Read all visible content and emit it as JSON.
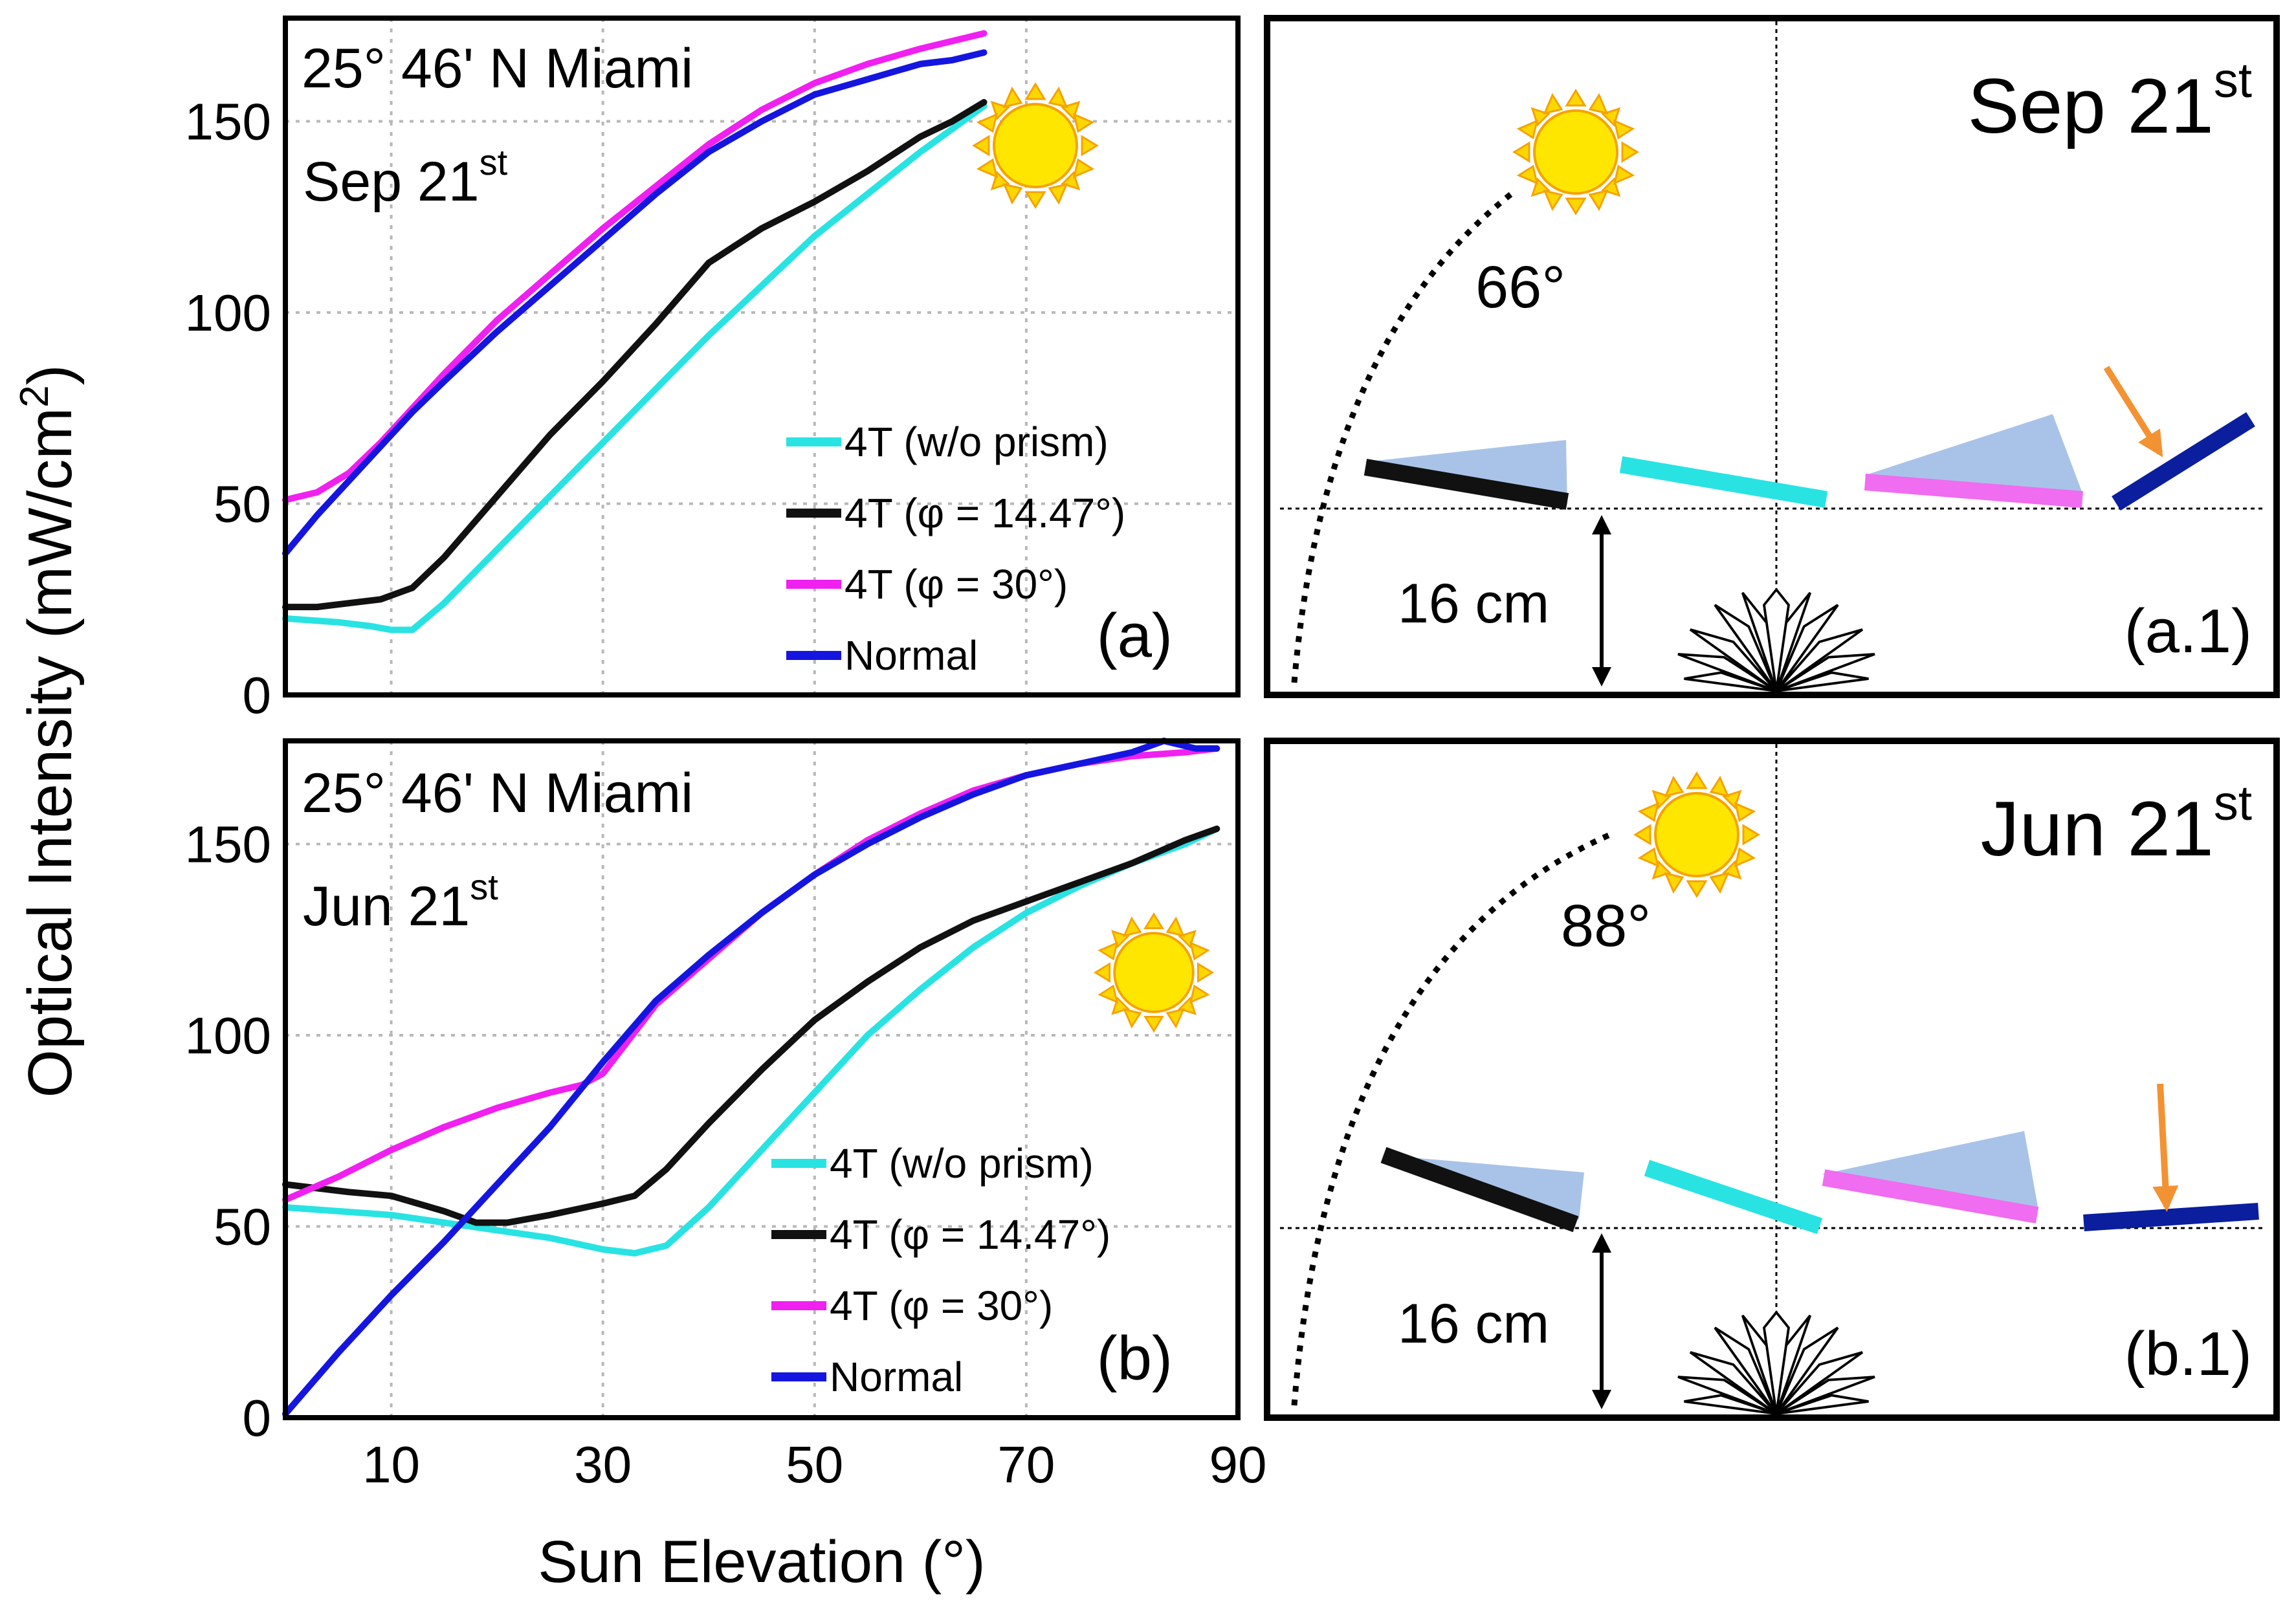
{
  "figure": {
    "ylabel": "Optical Intensity (mW/cm²)",
    "ylabel_main": "Optical Intensity (mW/cm",
    "ylabel_sup": "2",
    "ylabel_close": ")",
    "xlabel": "Sun Elevation (°)"
  },
  "chart_data": [
    {
      "type": "line",
      "panel_label": "(a)",
      "location": "25° 46' N Miami",
      "date": "Sep 21",
      "date_sup": "st",
      "xlim": [
        0,
        90
      ],
      "ylim": [
        0,
        177
      ],
      "xticks": [
        10,
        30,
        50,
        70,
        90
      ],
      "yticks": [
        0,
        50,
        100,
        150
      ],
      "grid": true,
      "legend_position": "bottom-right",
      "sun_icon": "sun-icon",
      "series": [
        {
          "name": "4T (w/o prism)",
          "color": "#29E3E3",
          "x": [
            0,
            5,
            8,
            10,
            12,
            15,
            20,
            25,
            30,
            35,
            40,
            45,
            50,
            55,
            60,
            63,
            66
          ],
          "y": [
            20,
            19,
            18,
            17,
            17,
            24,
            38,
            52,
            66,
            80,
            94,
            107,
            120,
            131,
            142,
            148,
            154
          ]
        },
        {
          "name": "4T (φ = 14.47°)",
          "color": "#111111",
          "x": [
            0,
            3,
            6,
            9,
            12,
            15,
            20,
            25,
            30,
            35,
            40,
            45,
            50,
            55,
            60,
            63,
            66
          ],
          "y": [
            23,
            23,
            24,
            25,
            28,
            36,
            52,
            68,
            82,
            97,
            113,
            122,
            129,
            137,
            146,
            150,
            155
          ]
        },
        {
          "name": "4T (φ = 30°)",
          "color": "#F020F0",
          "x": [
            0,
            3,
            6,
            9,
            12,
            15,
            20,
            25,
            30,
            35,
            40,
            45,
            50,
            55,
            60,
            63,
            66
          ],
          "y": [
            51,
            53,
            58,
            66,
            75,
            84,
            98,
            110,
            122,
            133,
            144,
            153,
            160,
            165,
            169,
            171,
            173
          ]
        },
        {
          "name": "Normal",
          "color": "#1515E0",
          "x": [
            0,
            3,
            6,
            9,
            12,
            15,
            20,
            25,
            30,
            35,
            40,
            45,
            50,
            55,
            60,
            63,
            66
          ],
          "y": [
            37,
            47,
            56,
            65,
            74,
            82,
            95,
            107,
            119,
            131,
            142,
            150,
            157,
            161,
            165,
            166,
            168
          ]
        }
      ]
    },
    {
      "type": "line",
      "panel_label": "(b)",
      "location": "25° 46' N Miami",
      "date": "Jun 21",
      "date_sup": "st",
      "xlim": [
        0,
        90
      ],
      "ylim": [
        0,
        177
      ],
      "xticks": [
        10,
        30,
        50,
        70,
        90
      ],
      "yticks": [
        0,
        50,
        100,
        150
      ],
      "grid": true,
      "legend_position": "bottom-right",
      "sun_icon": "sun-icon",
      "series": [
        {
          "name": "4T (w/o prism)",
          "color": "#29E3E3",
          "x": [
            0,
            5,
            10,
            15,
            20,
            25,
            30,
            33,
            36,
            40,
            45,
            50,
            55,
            60,
            65,
            70,
            75,
            80,
            85,
            88
          ],
          "y": [
            55,
            54,
            53,
            51,
            49,
            47,
            44,
            43,
            45,
            55,
            70,
            85,
            100,
            112,
            123,
            132,
            139,
            145,
            150,
            154
          ]
        },
        {
          "name": "4T (φ = 14.47°)",
          "color": "#111111",
          "x": [
            0,
            3,
            6,
            10,
            15,
            18,
            21,
            25,
            30,
            33,
            36,
            40,
            45,
            50,
            55,
            60,
            65,
            70,
            75,
            80,
            85,
            88
          ],
          "y": [
            61,
            60,
            59,
            58,
            54,
            51,
            51,
            53,
            56,
            58,
            65,
            77,
            91,
            104,
            114,
            123,
            130,
            135,
            140,
            145,
            151,
            154
          ]
        },
        {
          "name": "4T (φ = 30°)",
          "color": "#F020F0",
          "x": [
            0,
            5,
            10,
            15,
            20,
            25,
            28,
            30,
            35,
            40,
            45,
            50,
            55,
            60,
            65,
            70,
            75,
            80,
            85,
            88
          ],
          "y": [
            57,
            63,
            70,
            76,
            81,
            85,
            87,
            90,
            108,
            120,
            132,
            142,
            151,
            158,
            164,
            168,
            171,
            173,
            174,
            175
          ]
        },
        {
          "name": "Normal",
          "color": "#1515E0",
          "x": [
            0,
            5,
            10,
            15,
            20,
            25,
            30,
            35,
            40,
            45,
            50,
            55,
            60,
            65,
            70,
            75,
            80,
            83,
            86,
            88
          ],
          "y": [
            1,
            17,
            32,
            46,
            61,
            76,
            93,
            109,
            121,
            132,
            142,
            150,
            157,
            163,
            168,
            171,
            174,
            177,
            175,
            175
          ]
        }
      ]
    }
  ],
  "diagrams": [
    {
      "date": "Sep 21",
      "date_sup": "st",
      "angle": "66°",
      "distance": "16 cm",
      "panel_label": "(a.1)"
    },
    {
      "date": "Jun 21",
      "date_sup": "st",
      "angle": "88°",
      "distance": "16 cm",
      "panel_label": "(b.1)"
    }
  ],
  "colors": {
    "prism": "#A9C3E8",
    "cyan_panel": "#29E3E3",
    "magenta_panel": "#F06CF0",
    "black_panel": "#111111",
    "blue_panel": "#0A1E9E",
    "arrow": "#F39233",
    "sun_fill": "#FFE600",
    "sun_ray": "#FBB81C"
  }
}
